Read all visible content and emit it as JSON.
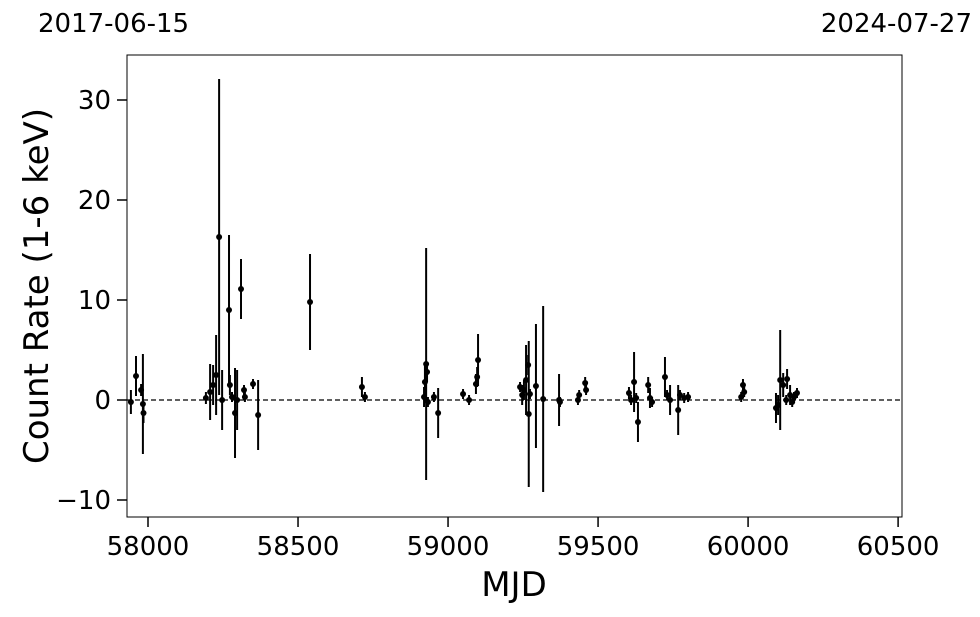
{
  "chart_data": {
    "type": "errorbar",
    "top_left_label": "2017-06-15",
    "top_right_label": "2024-07-27",
    "x_label": "MJD",
    "y_label": "Count Rate (1-6 keV)",
    "xlim": [
      57930,
      60513
    ],
    "ylim": [
      -11.7,
      34.5
    ],
    "xticks": [
      58000,
      58500,
      59000,
      59500,
      60000,
      60500
    ],
    "yticks": [
      {
        "value": -10,
        "label": "−10"
      },
      0,
      10,
      20,
      30
    ],
    "hline": 0,
    "color": "#000000",
    "x": [
      57943,
      57960,
      57977,
      57983,
      57985,
      58193,
      58207,
      58217,
      58227,
      58237,
      58247,
      58270,
      58273,
      58280,
      58290,
      58297,
      58310,
      58320,
      58323,
      58350,
      58367,
      58540,
      58713,
      58723,
      58920,
      58923,
      58927,
      58930,
      58933,
      58953,
      58967,
      59050,
      59070,
      59093,
      59097,
      59100,
      59240,
      59247,
      59253,
      59260,
      59267,
      59269,
      59273,
      59293,
      59317,
      59370,
      59373,
      59433,
      59437,
      59457,
      59460,
      59603,
      59610,
      59620,
      59627,
      59633,
      59667,
      59673,
      59680,
      59723,
      59730,
      59740,
      59767,
      59773,
      59787,
      59800,
      59977,
      59983,
      59987,
      60093,
      60100,
      60107,
      60117,
      60127,
      60130,
      60140,
      60147,
      60153,
      60163
    ],
    "values": [
      -0.2,
      2.4,
      1.0,
      -0.4,
      -1.3,
      0.2,
      0.8,
      1.5,
      2.5,
      16.3,
      0,
      9.0,
      1.5,
      0.3,
      -1.3,
      0,
      11.1,
      1.0,
      0.3,
      1.6,
      -1.5,
      9.8,
      1.3,
      0.3,
      0.3,
      1.8,
      3.6,
      2.8,
      -0.2,
      0.3,
      -1.3,
      0.6,
      0,
      1.6,
      2.3,
      4.0,
      1.3,
      0.5,
      1.0,
      2.0,
      3.5,
      -1.4,
      0.6,
      1.4,
      0.1,
      0,
      -0.2,
      0,
      0.5,
      1.7,
      1.0,
      0.7,
      0,
      1.8,
      0.2,
      -2.2,
      1.5,
      0.2,
      -0.2,
      2.3,
      0.5,
      0,
      -1.0,
      0.5,
      0.2,
      0.3,
      0.3,
      1.5,
      0.8,
      -0.8,
      -0.5,
      2.0,
      1.5,
      0,
      2.1,
      0.5,
      -0.2,
      0.3,
      0.7
    ],
    "errors": [
      1.2,
      2,
      0.6,
      5,
      1,
      0.6,
      2.8,
      2,
      4,
      15.8,
      3,
      7.5,
      1,
      0.5,
      4.5,
      3,
      3,
      0.5,
      0.5,
      0.5,
      3.5,
      4.8,
      1,
      0.5,
      1,
      2,
      11.6,
      1,
      0.5,
      0.5,
      2.5,
      0.5,
      0.5,
      1,
      1,
      2.6,
      0.5,
      1,
      1,
      3.5,
      1,
      7.3,
      0.5,
      6.2,
      9.3,
      2.6,
      0.5,
      0.5,
      0.5,
      0.6,
      0.5,
      0.6,
      0.5,
      3,
      0.5,
      2,
      0.8,
      1,
      0.5,
      2,
      0.5,
      1.5,
      2.5,
      0.5,
      0.5,
      0.5,
      0.5,
      0.6,
      0.5,
      1.5,
      1,
      5,
      1.2,
      0.5,
      1,
      1,
      0.5,
      0.5,
      0.5
    ]
  }
}
